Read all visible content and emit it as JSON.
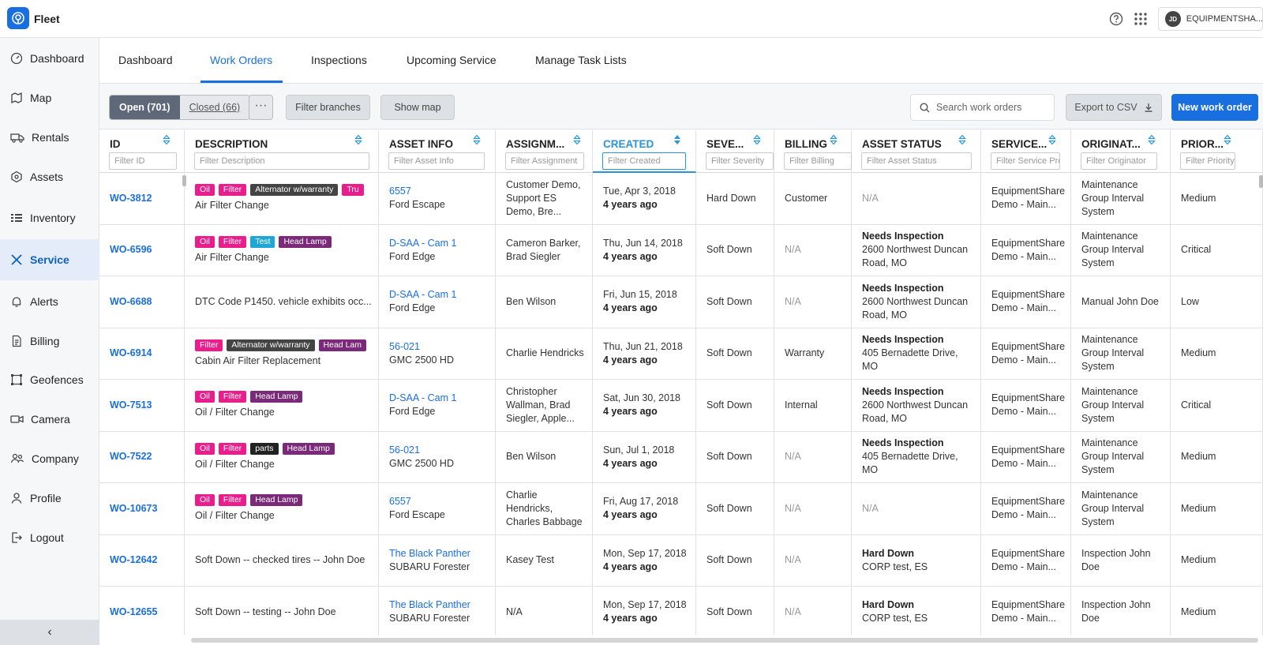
{
  "app": {
    "name": "Fleet",
    "account": "EQUIPMENTSHA...",
    "avatar_initials": "JD"
  },
  "sidebar": {
    "items": [
      {
        "label": "Dashboard",
        "icon": "gauge-icon"
      },
      {
        "label": "Map",
        "icon": "map-icon"
      },
      {
        "label": "Rentals",
        "icon": "truck-icon"
      },
      {
        "label": "Assets",
        "icon": "hexagon-icon"
      },
      {
        "label": "Inventory",
        "icon": "list-icon"
      },
      {
        "label": "Service",
        "icon": "wrench-icon"
      },
      {
        "label": "Alerts",
        "icon": "bell-icon"
      },
      {
        "label": "Billing",
        "icon": "document-icon"
      },
      {
        "label": "Geofences",
        "icon": "geofence-icon"
      },
      {
        "label": "Camera",
        "icon": "camera-icon"
      },
      {
        "label": "Company",
        "icon": "people-icon"
      },
      {
        "label": "Profile",
        "icon": "person-icon"
      },
      {
        "label": "Logout",
        "icon": "logout-icon"
      }
    ],
    "active": "Service",
    "collapse_label": "‹"
  },
  "tabs": [
    {
      "label": "Dashboard"
    },
    {
      "label": "Work Orders"
    },
    {
      "label": "Inspections"
    },
    {
      "label": "Upcoming Service"
    },
    {
      "label": "Manage Task Lists"
    }
  ],
  "active_tab": "Work Orders",
  "toolbar": {
    "open_label": "Open (701)",
    "closed_label": "Closed (66)",
    "more_label": "···",
    "filter_branches": "Filter branches",
    "show_map": "Show map",
    "search_placeholder": "Search work orders",
    "export_label": "Export to CSV",
    "new_label": "New work order"
  },
  "columns": [
    {
      "title": "ID",
      "filter": "Filter ID"
    },
    {
      "title": "DESCRIPTION",
      "filter": "Filter Description"
    },
    {
      "title": "ASSET INFO",
      "filter": "Filter Asset Info"
    },
    {
      "title": "ASSIGNM...",
      "filter": "Filter Assignment"
    },
    {
      "title": "CREATED",
      "filter": "Filter Created"
    },
    {
      "title": "SEVE...",
      "filter": "Filter Severity"
    },
    {
      "title": "BILLING",
      "filter": "Filter Billing"
    },
    {
      "title": "ASSET STATUS",
      "filter": "Filter Asset Status"
    },
    {
      "title": "SERVICE...",
      "filter": "Filter Service Prov"
    },
    {
      "title": "ORIGINAT...",
      "filter": "Filter Originator"
    },
    {
      "title": "PRIOR...",
      "filter": "Filter Priority"
    }
  ],
  "tag_colors": {
    "Oil": "#e91e8c",
    "Filter": "#e91e8c",
    "Alternator w/warranty": "#444444",
    "Tru": "#e91e8c",
    "Test": "#1ea7d6",
    "Head Lamp": "#7b2a7a",
    "parts": "#222222"
  },
  "rows": [
    {
      "id": "WO-3812",
      "tags": [
        "Oil",
        "Filter",
        "Alternator w/warranty",
        "Tru"
      ],
      "desc": "Air Filter Change",
      "asset_link": "6557",
      "asset_sub": "Ford Escape",
      "assign": "Customer Demo, Support ES Demo, Bre...",
      "created_date": "Tue, Apr 3, 2018",
      "created_rel": "4 years ago",
      "severity": "Hard Down",
      "billing": "Customer",
      "status_title": "",
      "status_sub": "N/A",
      "provider": "EquipmentShare Demo - Main...",
      "originator": "Maintenance Group Interval System",
      "priority": "Medium"
    },
    {
      "id": "WO-6596",
      "tags": [
        "Oil",
        "Filter",
        "Test",
        "Head Lamp"
      ],
      "desc": "Air Filter Change",
      "asset_link": "D-SAA - Cam 1",
      "asset_sub": "Ford Edge",
      "assign": "Cameron Barker, Brad Siegler",
      "created_date": "Thu, Jun 14, 2018",
      "created_rel": "4 years ago",
      "severity": "Soft Down",
      "billing": "N/A",
      "status_title": "Needs Inspection",
      "status_sub": "2600 Northwest Duncan Road, MO",
      "provider": "EquipmentShare Demo - Main...",
      "originator": "Maintenance Group Interval System",
      "priority": "Critical"
    },
    {
      "id": "WO-6688",
      "tags": [],
      "desc": "DTC Code P1450. vehicle exhibits occ...",
      "asset_link": "D-SAA - Cam 1",
      "asset_sub": "Ford Edge",
      "assign": "Ben Wilson",
      "created_date": "Fri, Jun 15, 2018",
      "created_rel": "4 years ago",
      "severity": "Soft Down",
      "billing": "N/A",
      "status_title": "Needs Inspection",
      "status_sub": "2600 Northwest Duncan Road, MO",
      "provider": "EquipmentShare Demo - Main...",
      "originator": "Manual John Doe",
      "priority": "Low"
    },
    {
      "id": "WO-6914",
      "tags": [
        "Filter",
        "Alternator w/warranty",
        "Head Lam"
      ],
      "desc": "Cabin Air Filter Replacement",
      "asset_link": "56-021",
      "asset_sub": "GMC 2500 HD",
      "assign": "Charlie Hendricks",
      "created_date": "Thu, Jun 21, 2018",
      "created_rel": "4 years ago",
      "severity": "Soft Down",
      "billing": "Warranty",
      "status_title": "Needs Inspection",
      "status_sub": "405 Bernadette Drive, MO",
      "provider": "EquipmentShare Demo - Main...",
      "originator": "Maintenance Group Interval System",
      "priority": "Medium"
    },
    {
      "id": "WO-7513",
      "tags": [
        "Oil",
        "Filter",
        "Head Lamp"
      ],
      "desc": "Oil / Filter Change",
      "asset_link": "D-SAA - Cam 1",
      "asset_sub": "Ford Edge",
      "assign": "Christopher Wallman, Brad Siegler, Apple...",
      "created_date": "Sat, Jun 30, 2018",
      "created_rel": "4 years ago",
      "severity": "Soft Down",
      "billing": "Internal",
      "status_title": "Needs Inspection",
      "status_sub": "2600 Northwest Duncan Road, MO",
      "provider": "EquipmentShare Demo - Main...",
      "originator": "Maintenance Group Interval System",
      "priority": "Critical"
    },
    {
      "id": "WO-7522",
      "tags": [
        "Oil",
        "Filter",
        "parts",
        "Head Lamp"
      ],
      "desc": "Oil / Filter Change",
      "asset_link": "56-021",
      "asset_sub": "GMC 2500 HD",
      "assign": "Ben Wilson",
      "created_date": "Sun, Jul 1, 2018",
      "created_rel": "4 years ago",
      "severity": "Soft Down",
      "billing": "N/A",
      "status_title": "Needs Inspection",
      "status_sub": "405 Bernadette Drive, MO",
      "provider": "EquipmentShare Demo - Main...",
      "originator": "Maintenance Group Interval System",
      "priority": "Medium"
    },
    {
      "id": "WO-10673",
      "tags": [
        "Oil",
        "Filter",
        "Head Lamp"
      ],
      "desc": "Oil / Filter Change",
      "asset_link": "6557",
      "asset_sub": "Ford Escape",
      "assign": "Charlie Hendricks, Charles Babbage",
      "created_date": "Fri, Aug 17, 2018",
      "created_rel": "4 years ago",
      "severity": "Soft Down",
      "billing": "N/A",
      "status_title": "",
      "status_sub": "N/A",
      "provider": "EquipmentShare Demo - Main...",
      "originator": "Maintenance Group Interval System",
      "priority": "Medium"
    },
    {
      "id": "WO-12642",
      "tags": [],
      "desc": "Soft Down -- checked tires -- John Doe",
      "asset_link": "The Black Panther",
      "asset_sub": "SUBARU Forester",
      "assign": "Kasey Test",
      "created_date": "Mon, Sep 17, 2018",
      "created_rel": "4 years ago",
      "severity": "Soft Down",
      "billing": "N/A",
      "status_title": "Hard Down",
      "status_sub": "CORP test, ES",
      "provider": "EquipmentShare Demo - Main...",
      "originator": "Inspection John Doe",
      "priority": "Medium"
    },
    {
      "id": "WO-12655",
      "tags": [],
      "desc": "Soft Down -- testing -- John Doe",
      "asset_link": "The Black Panther",
      "asset_sub": "SUBARU Forester",
      "assign": "N/A",
      "created_date": "Mon, Sep 17, 2018",
      "created_rel": "4 years ago",
      "severity": "Soft Down",
      "billing": "N/A",
      "status_title": "Hard Down",
      "status_sub": "CORP test, ES",
      "provider": "EquipmentShare Demo - Main...",
      "originator": "Inspection John Doe",
      "priority": "Medium"
    }
  ]
}
